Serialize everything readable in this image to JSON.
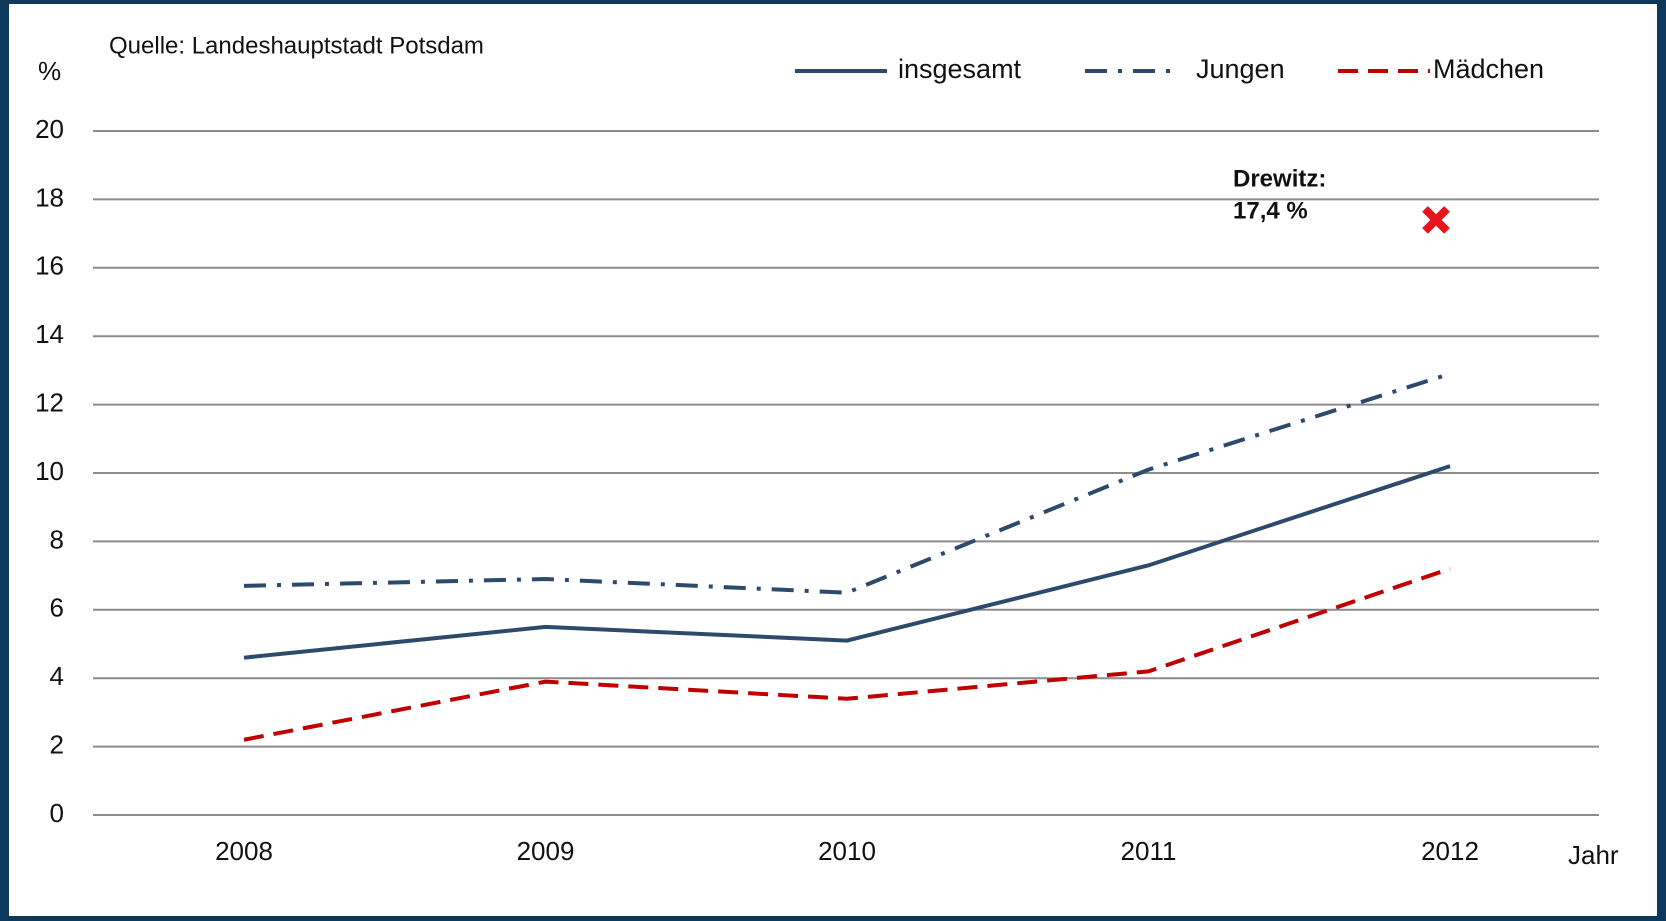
{
  "chart_data": {
    "type": "line",
    "source": "Quelle: Landeshauptstadt Potsdam",
    "y_label": "%",
    "x_label": "Jahr",
    "categories": [
      "2008",
      "2009",
      "2010",
      "2011",
      "2012"
    ],
    "series": [
      {
        "name": "insgesamt",
        "color": "#2d4a6d",
        "dash": "solid",
        "values": [
          4.6,
          5.5,
          5.1,
          7.3,
          10.2
        ]
      },
      {
        "name": "Jungen",
        "color": "#2d4a6d",
        "dash": "dashdot",
        "values": [
          6.7,
          6.9,
          6.5,
          10.1,
          12.9
        ]
      },
      {
        "name": "Mädchen",
        "color": "#c00000",
        "dash": "dashed",
        "values": [
          2.2,
          3.9,
          3.4,
          4.2,
          7.2
        ]
      }
    ],
    "annotation": {
      "lines": [
        "Drewitz:",
        "17,4 %"
      ],
      "x": "2012",
      "value": 17.4,
      "color": "#e8141c"
    },
    "ylim": [
      0,
      20
    ],
    "yticks": [
      0,
      2,
      4,
      6,
      8,
      10,
      12,
      14,
      16,
      18,
      20
    ],
    "grid": true
  }
}
